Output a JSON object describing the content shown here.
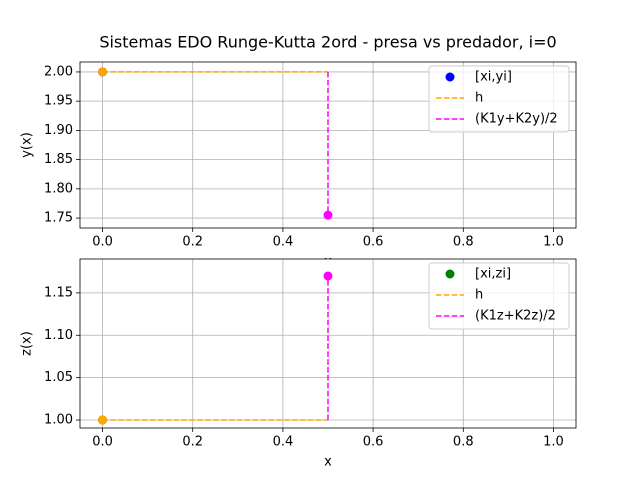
{
  "chart_data": [
    {
      "type": "line",
      "title": "Sistemas EDO Runge-Kutta 2ord - presa vs predador, i=0",
      "xlabel": "x",
      "ylabel": "y(x)",
      "xlim": [
        -0.05,
        1.05
      ],
      "ylim": [
        1.733,
        2.017
      ],
      "xticks": [
        {
          "value": 0,
          "label": "0.0"
        },
        0.2,
        0.4,
        0.6,
        0.8,
        {
          "value": 1,
          "label": "1.0"
        }
      ],
      "yticks": [
        {
          "value": 1.75,
          "label": "1.75"
        },
        {
          "value": 1.8,
          "label": "1.80"
        },
        {
          "value": 1.85,
          "label": "1.85"
        },
        {
          "value": 1.9,
          "label": "1.90"
        },
        {
          "value": 1.95,
          "label": "1.95"
        },
        {
          "value": 2,
          "label": "2.00"
        }
      ],
      "grid": true,
      "legend": "upper right",
      "series": [
        {
          "name": "[xi,yi]",
          "color": "#0000ff",
          "style": "points",
          "x": [
            0
          ],
          "values": [
            2.0
          ],
          "markers": [
            true
          ]
        },
        {
          "name": "h",
          "color": "#ffa500",
          "style": "dashed",
          "x": [
            0,
            0.5
          ],
          "values": [
            2.0,
            2.0
          ],
          "markers": [
            true,
            false
          ]
        },
        {
          "name": "(K1y+K2y)/2",
          "color": "#ff00ff",
          "style": "dashed",
          "x": [
            0.5,
            0.5
          ],
          "values": [
            2.0,
            1.755
          ],
          "markers": [
            false,
            true
          ]
        }
      ]
    },
    {
      "type": "line",
      "xlabel": "x",
      "ylabel": "z(x)",
      "xlim": [
        -0.05,
        1.05
      ],
      "ylim": [
        0.9906,
        1.19
      ],
      "xticks": [
        {
          "value": 0,
          "label": "0.0"
        },
        0.2,
        0.4,
        0.6,
        0.8,
        {
          "value": 1,
          "label": "1.0"
        }
      ],
      "yticks": [
        {
          "value": 1,
          "label": "1.00"
        },
        1.05,
        {
          "value": 1.1,
          "label": "1.10"
        },
        1.15
      ],
      "grid": true,
      "legend": "upper right",
      "series": [
        {
          "name": "[xi,zi]",
          "color": "#008000",
          "style": "points",
          "x": [
            0
          ],
          "values": [
            1.0
          ],
          "markers": [
            true
          ]
        },
        {
          "name": "h",
          "color": "#ffa500",
          "style": "dashed",
          "x": [
            0,
            0.5
          ],
          "values": [
            1.0,
            1.0
          ],
          "markers": [
            true,
            false
          ]
        },
        {
          "name": "(K1z+K2z)/2",
          "color": "#ff00ff",
          "style": "dashed",
          "x": [
            0.5,
            0.5
          ],
          "values": [
            1.0,
            1.17
          ],
          "markers": [
            false,
            true
          ]
        }
      ]
    }
  ]
}
